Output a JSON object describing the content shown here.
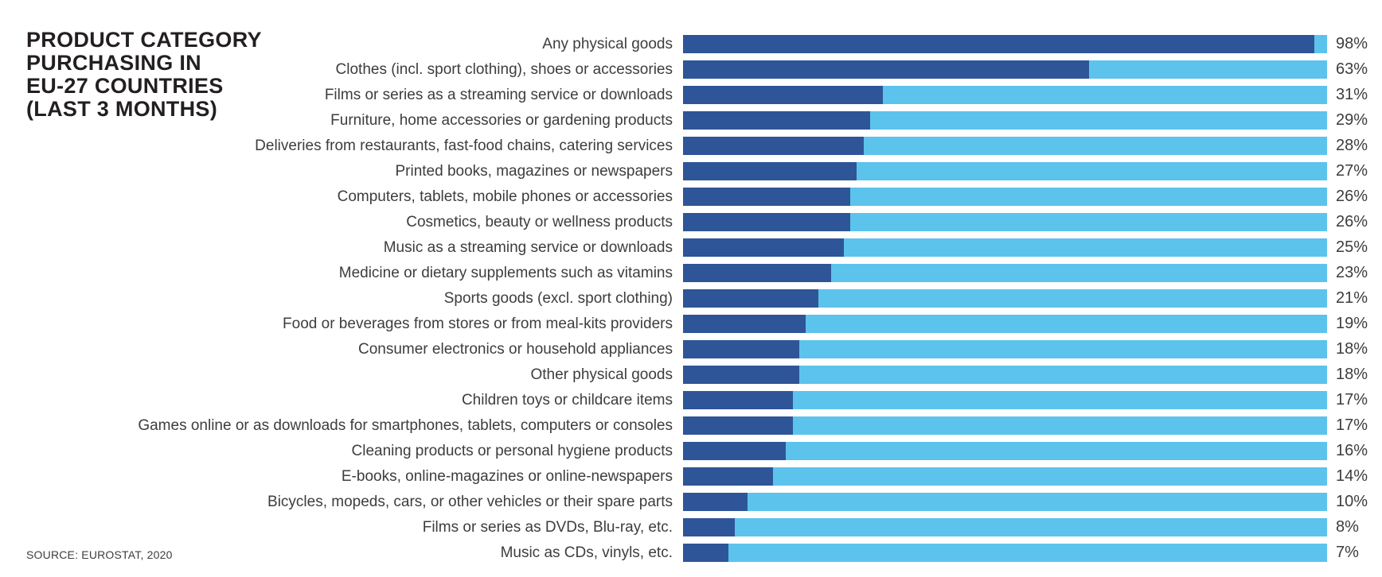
{
  "title": "PRODUCT CATEGORY\nPURCHASING IN\nEU-27 COUNTRIES\n(LAST 3 MONTHS)",
  "source": "SOURCE: EUROSTAT, 2020",
  "colors": {
    "bar_fill": "#2e5597",
    "bar_track": "#5cc3ec",
    "title_text": "#231f20",
    "label_text": "#3d3d3d",
    "background": "#ffffff"
  },
  "chart_data": {
    "type": "bar",
    "orientation": "horizontal",
    "title": "PRODUCT CATEGORY PURCHASING IN EU-27 COUNTRIES (LAST 3 MONTHS)",
    "xlabel": "",
    "ylabel": "",
    "xlim": [
      0,
      100
    ],
    "unit": "%",
    "grid": false,
    "legend": false,
    "categories": [
      "Any physical goods",
      "Clothes (incl. sport clothing), shoes or accessories",
      "Films or series as a streaming service or downloads",
      "Furniture, home accessories or gardening products",
      "Deliveries from restaurants, fast-food chains, catering services",
      "Printed books, magazines or newspapers",
      "Computers, tablets, mobile phones or accessories",
      "Cosmetics, beauty or wellness products",
      "Music as a streaming service or downloads",
      "Medicine or dietary supplements such as vitamins",
      "Sports goods (excl. sport clothing)",
      "Food or beverages from stores or from meal-kits providers",
      "Consumer electronics or household appliances",
      "Other physical goods",
      "Children toys or childcare items",
      "Games online or as downloads for smartphones, tablets, computers or consoles",
      "Cleaning products or personal hygiene products",
      "E-books, online-magazines or online-newspapers",
      "Bicycles, mopeds, cars, or other vehicles or their spare parts",
      "Films or series as DVDs, Blu-ray, etc.",
      "Music as CDs, vinyls, etc."
    ],
    "values": [
      98,
      63,
      31,
      29,
      28,
      27,
      26,
      26,
      25,
      23,
      21,
      19,
      18,
      18,
      17,
      17,
      16,
      14,
      10,
      8,
      7
    ],
    "value_labels": [
      "98%",
      "63%",
      "31%",
      "29%",
      "28%",
      "27%",
      "26%",
      "26%",
      "25%",
      "23%",
      "21%",
      "19%",
      "18%",
      "18%",
      "17%",
      "17%",
      "16%",
      "14%",
      "10%",
      "8%",
      "7%"
    ]
  }
}
